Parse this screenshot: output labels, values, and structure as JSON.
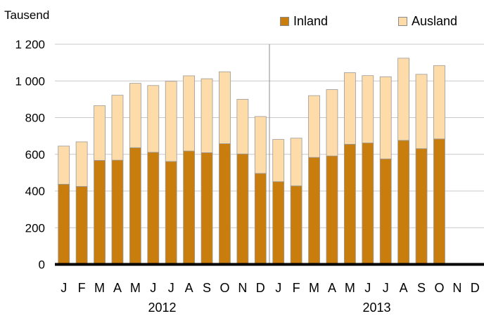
{
  "chart_data": {
    "type": "bar",
    "stacked": true,
    "unit_label": "Tausend",
    "categories": [
      "J",
      "F",
      "M",
      "A",
      "M",
      "J",
      "J",
      "A",
      "S",
      "O",
      "N",
      "D",
      "J",
      "F",
      "M",
      "A",
      "M",
      "J",
      "J",
      "A",
      "S",
      "O",
      "N",
      "D"
    ],
    "year_labels": [
      "2012",
      "2013"
    ],
    "series": [
      {
        "name": "Inland",
        "color": "#c87d0c",
        "values": [
          437,
          425,
          567,
          568,
          636,
          611,
          561,
          618,
          609,
          658,
          602,
          496,
          451,
          428,
          583,
          591,
          655,
          662,
          575,
          676,
          631,
          684,
          null,
          null
        ]
      },
      {
        "name": "Ausland",
        "color": "#fddcaa",
        "values": [
          208,
          243,
          298,
          354,
          351,
          364,
          437,
          410,
          403,
          392,
          298,
          310,
          230,
          260,
          337,
          362,
          390,
          367,
          448,
          448,
          405,
          400,
          null,
          null
        ]
      }
    ],
    "ylim": [
      0,
      1200
    ],
    "yticks": [
      "0",
      "200",
      "400",
      "600",
      "800",
      "1 000",
      "1 200"
    ],
    "grid": true,
    "legend_position": "top-right"
  }
}
